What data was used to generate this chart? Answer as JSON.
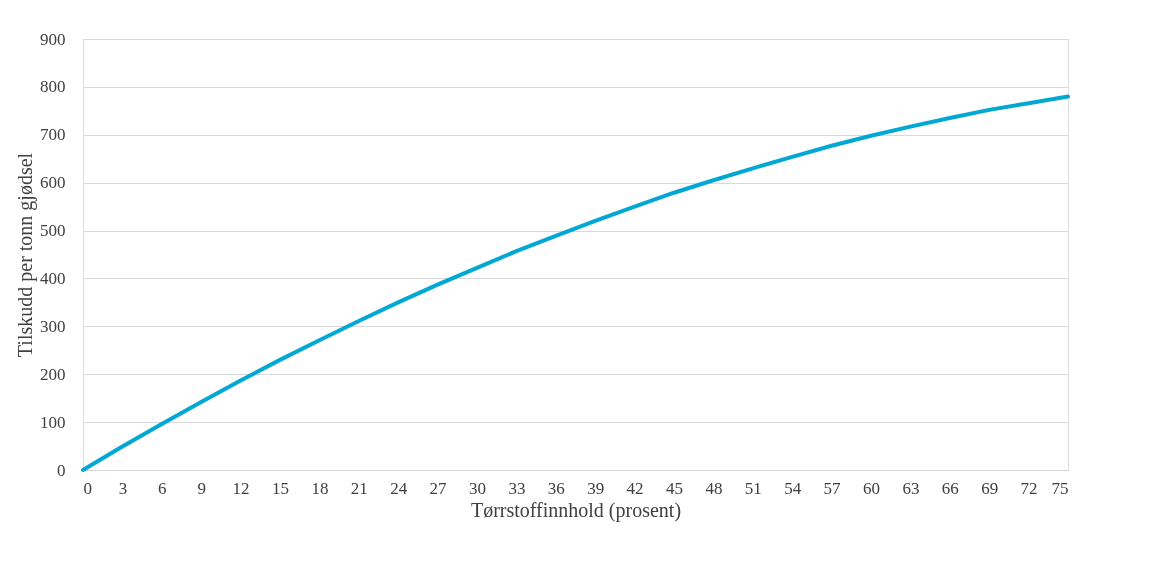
{
  "chart_data": {
    "type": "line",
    "xlabel": "Tørrstoffinnhold (prosent)",
    "ylabel": "Tilskudd per tonn gjødsel",
    "x": [
      0,
      3,
      6,
      9,
      12,
      15,
      18,
      21,
      24,
      27,
      30,
      33,
      36,
      39,
      42,
      45,
      48,
      51,
      54,
      57,
      60,
      63,
      66,
      69,
      72,
      75
    ],
    "series": [
      {
        "color": "#00a8d3",
        "values": [
          0,
          49,
          96,
          142,
          187,
          230,
          271,
          311,
          350,
          387,
          422,
          457,
          489,
          520,
          550,
          579,
          605,
          630,
          654,
          677,
          698,
          717,
          735,
          752,
          766,
          780
        ]
      }
    ],
    "xlim": [
      0,
      75
    ],
    "xticks": [
      0,
      3,
      6,
      9,
      12,
      15,
      18,
      21,
      24,
      27,
      30,
      33,
      36,
      39,
      42,
      45,
      48,
      51,
      54,
      57,
      60,
      63,
      66,
      69,
      72,
      75
    ],
    "ylim": [
      0,
      900
    ],
    "yticks": [
      0,
      100,
      200,
      300,
      400,
      500,
      600,
      700,
      800,
      900
    ],
    "grid": "y",
    "marker": "none",
    "line_style": "solid"
  }
}
